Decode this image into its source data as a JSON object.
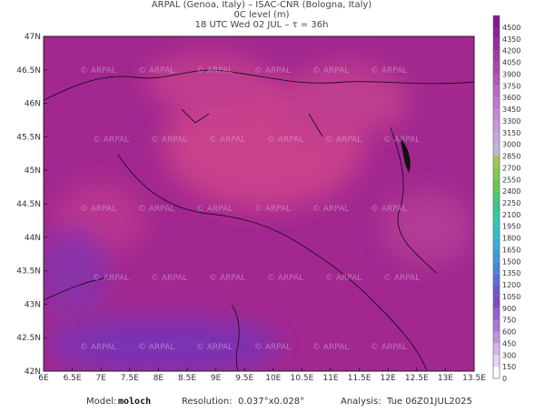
{
  "header": {
    "line1": "ARPAL (Genoa, Italy)  –  ISAC-CNR (Bologna, Italy)",
    "line2": "0C level (m)",
    "line3": "18 UTC Wed 02 JUL  –  τ = 36h"
  },
  "map": {
    "lon_labels": [
      "6E",
      "6.5E",
      "7E",
      "7.5E",
      "8E",
      "8.5E",
      "9E",
      "9.5E",
      "10E",
      "10.5E",
      "11E",
      "11.5E",
      "12E",
      "12.5E",
      "13E",
      "13.5E"
    ],
    "lat_labels": [
      "42N",
      "42.5N",
      "43N",
      "43.5N",
      "44N",
      "44.5N",
      "45N",
      "45.5N",
      "46N",
      "46.5N",
      "47N"
    ],
    "watermark": "© ARPAL"
  },
  "colorbar": {
    "levels": [
      0,
      150,
      300,
      450,
      600,
      750,
      900,
      1050,
      1200,
      1350,
      1500,
      1650,
      1800,
      1950,
      2100,
      2250,
      2400,
      2550,
      2700,
      2850,
      3000,
      3150,
      3300,
      3450,
      3600,
      3750,
      3900,
      4050,
      4200,
      4350,
      4500
    ],
    "colors": [
      "#ffffff",
      "#e6d5f0",
      "#d2b5e8",
      "#bd95df",
      "#a878d6",
      "#9460cc",
      "#8048c0",
      "#6a5ad0",
      "#5a70d8",
      "#4a86de",
      "#3c9ce0",
      "#34b0d8",
      "#2ec0c8",
      "#2ccab0",
      "#34c890",
      "#48c870",
      "#64c858",
      "#84c850",
      "#a0c850",
      "#b8b8d8",
      "#c4a8e0",
      "#c898dc",
      "#c888d8",
      "#c078d0",
      "#b868c4",
      "#b058b8",
      "#a848ac",
      "#a03ca4",
      "#982c9c",
      "#8c2294",
      "#7e1c8a"
    ]
  },
  "footer": {
    "model_label": "Model:",
    "model": "moloch",
    "res_label": "Resolution:",
    "res": "0.037°x0.028°",
    "an_label": "Analysis:",
    "an": "Tue 06Z01JUL2025"
  }
}
